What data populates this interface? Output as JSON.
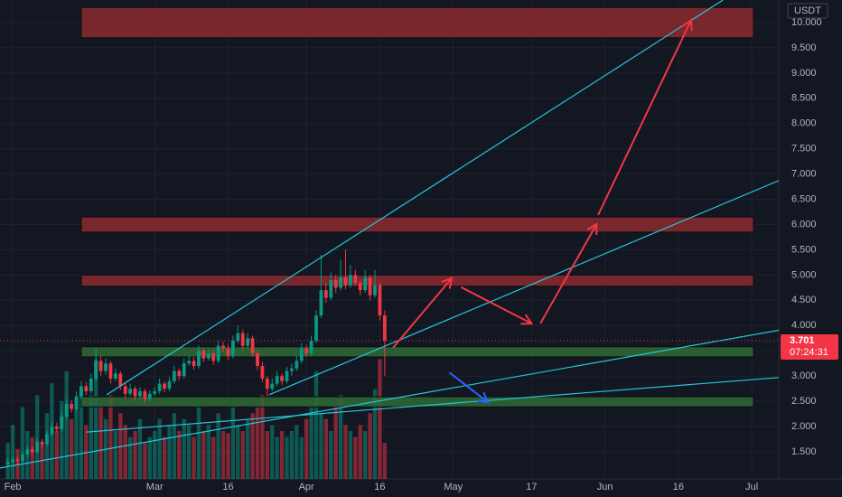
{
  "chart_data": {
    "type": "candlestick",
    "currency": "USDT",
    "last_price": 3.701,
    "countdown": "07:24:31",
    "colors": {
      "up": "#089981",
      "down": "#f23645"
    },
    "grid": true,
    "xlim": [
      -2.6,
      156.5
    ],
    "ylim": [
      0.963,
      10.447
    ],
    "volume_lim": [
      0,
      400
    ],
    "xticks": [
      {
        "value": 0,
        "label": "Feb"
      },
      {
        "value": 29,
        "label": "Mar"
      },
      {
        "value": 44,
        "label": "16"
      },
      {
        "value": 60,
        "label": "Apr"
      },
      {
        "value": 75,
        "label": "16"
      },
      {
        "value": 90,
        "label": "May"
      },
      {
        "value": 106,
        "label": "17"
      },
      {
        "value": 121,
        "label": "Jun"
      },
      {
        "value": 136,
        "label": "16"
      },
      {
        "value": 151,
        "label": "Jul"
      }
    ],
    "yticks": [
      {
        "value": 1.5,
        "label": "1.500"
      },
      {
        "value": 2,
        "label": "2.000"
      },
      {
        "value": 2.5,
        "label": "2.500"
      },
      {
        "value": 3,
        "label": "3.000"
      },
      {
        "value": 3.5,
        "label": "3.500"
      },
      {
        "value": 4,
        "label": "4.000"
      },
      {
        "value": 4.5,
        "label": "4.500"
      },
      {
        "value": 5,
        "label": "5.000"
      },
      {
        "value": 5.5,
        "label": "5.500"
      },
      {
        "value": 6,
        "label": "6.000"
      },
      {
        "value": 6.5,
        "label": "6.500"
      },
      {
        "value": 7,
        "label": "7.000"
      },
      {
        "value": 7.5,
        "label": "7.500"
      },
      {
        "value": 8,
        "label": "8.000"
      },
      {
        "value": 8.5,
        "label": "8.500"
      },
      {
        "value": 9,
        "label": "9.000"
      },
      {
        "value": 9.5,
        "label": "9.500"
      },
      {
        "value": 10,
        "label": "10.000"
      }
    ],
    "x": [
      -1,
      0,
      1,
      2,
      3,
      4,
      5,
      6,
      7,
      8,
      9,
      10,
      11,
      12,
      13,
      14,
      15,
      16,
      17,
      18,
      19,
      20,
      21,
      22,
      23,
      24,
      25,
      26,
      27,
      28,
      29,
      30,
      31,
      32,
      33,
      34,
      35,
      36,
      37,
      38,
      39,
      40,
      41,
      42,
      43,
      44,
      45,
      46,
      47,
      48,
      49,
      50,
      51,
      52,
      53,
      54,
      55,
      56,
      57,
      58,
      59,
      60,
      61,
      62,
      63,
      64,
      65,
      66,
      67,
      68,
      69,
      70,
      71,
      72,
      73,
      74,
      75,
      76
    ],
    "ohlc": [
      [
        1.25,
        1.38,
        1.2,
        1.3
      ],
      [
        1.3,
        1.42,
        1.26,
        1.35
      ],
      [
        1.35,
        1.4,
        1.25,
        1.32
      ],
      [
        1.32,
        1.52,
        1.28,
        1.45
      ],
      [
        1.45,
        1.62,
        1.4,
        1.55
      ],
      [
        1.55,
        1.6,
        1.44,
        1.5
      ],
      [
        1.5,
        1.78,
        1.46,
        1.7
      ],
      [
        1.7,
        1.75,
        1.58,
        1.65
      ],
      [
        1.65,
        1.92,
        1.6,
        1.85
      ],
      [
        1.85,
        2.1,
        1.8,
        2.0
      ],
      [
        2.0,
        2.08,
        1.88,
        1.95
      ],
      [
        1.95,
        2.3,
        1.9,
        2.2
      ],
      [
        2.2,
        2.55,
        2.15,
        2.45
      ],
      [
        2.45,
        2.52,
        2.28,
        2.35
      ],
      [
        2.35,
        2.7,
        2.3,
        2.6
      ],
      [
        2.6,
        2.9,
        2.55,
        2.8
      ],
      [
        2.8,
        2.88,
        2.62,
        2.7
      ],
      [
        2.7,
        3.05,
        2.65,
        2.95
      ],
      [
        2.95,
        3.55,
        2.9,
        3.3
      ],
      [
        3.3,
        3.4,
        3.0,
        3.1
      ],
      [
        3.1,
        3.35,
        3.02,
        3.25
      ],
      [
        3.25,
        3.3,
        2.85,
        2.95
      ],
      [
        2.95,
        3.15,
        2.9,
        3.05
      ],
      [
        3.05,
        3.1,
        2.72,
        2.8
      ],
      [
        2.8,
        2.88,
        2.55,
        2.65
      ],
      [
        2.65,
        2.85,
        2.6,
        2.75
      ],
      [
        2.75,
        2.8,
        2.52,
        2.6
      ],
      [
        2.6,
        2.78,
        2.55,
        2.7
      ],
      [
        2.7,
        2.75,
        2.48,
        2.55
      ],
      [
        2.55,
        2.72,
        2.5,
        2.65
      ],
      [
        2.65,
        2.78,
        2.6,
        2.7
      ],
      [
        2.7,
        2.95,
        2.65,
        2.85
      ],
      [
        2.85,
        2.9,
        2.68,
        2.75
      ],
      [
        2.75,
        2.98,
        2.7,
        2.9
      ],
      [
        2.9,
        3.2,
        2.85,
        3.1
      ],
      [
        3.1,
        3.15,
        2.92,
        3.0
      ],
      [
        3.0,
        3.35,
        2.95,
        3.25
      ],
      [
        3.25,
        3.4,
        3.2,
        3.3
      ],
      [
        3.3,
        3.38,
        3.12,
        3.2
      ],
      [
        3.2,
        3.6,
        3.15,
        3.5
      ],
      [
        3.5,
        3.55,
        3.28,
        3.35
      ],
      [
        3.35,
        3.52,
        3.3,
        3.45
      ],
      [
        3.45,
        3.5,
        3.22,
        3.3
      ],
      [
        3.3,
        3.7,
        3.25,
        3.6
      ],
      [
        3.6,
        3.68,
        3.48,
        3.55
      ],
      [
        3.55,
        3.62,
        3.32,
        3.4
      ],
      [
        3.4,
        3.8,
        3.35,
        3.7
      ],
      [
        3.7,
        4.0,
        3.65,
        3.85
      ],
      [
        3.85,
        3.92,
        3.52,
        3.6
      ],
      [
        3.6,
        3.85,
        3.55,
        3.75
      ],
      [
        3.75,
        3.8,
        3.38,
        3.45
      ],
      [
        3.45,
        3.5,
        3.12,
        3.2
      ],
      [
        3.2,
        3.28,
        2.88,
        2.95
      ],
      [
        2.95,
        3.0,
        2.6,
        2.75
      ],
      [
        2.75,
        2.95,
        2.7,
        2.85
      ],
      [
        2.85,
        3.1,
        2.8,
        3.0
      ],
      [
        3.0,
        3.05,
        2.82,
        2.9
      ],
      [
        2.9,
        3.18,
        2.85,
        3.1
      ],
      [
        3.1,
        3.25,
        3.0,
        3.15
      ],
      [
        3.15,
        3.4,
        3.1,
        3.3
      ],
      [
        3.3,
        3.65,
        3.25,
        3.55
      ],
      [
        3.55,
        3.62,
        3.38,
        3.45
      ],
      [
        3.45,
        3.8,
        3.4,
        3.7
      ],
      [
        3.7,
        4.3,
        3.65,
        4.2
      ],
      [
        4.2,
        5.4,
        4.15,
        4.7
      ],
      [
        4.7,
        4.85,
        4.45,
        4.55
      ],
      [
        4.55,
        5.05,
        4.5,
        4.9
      ],
      [
        4.9,
        5.0,
        4.65,
        4.75
      ],
      [
        4.75,
        5.3,
        4.7,
        4.95
      ],
      [
        4.95,
        5.5,
        4.72,
        4.8
      ],
      [
        4.8,
        5.2,
        4.75,
        5.0
      ],
      [
        5.0,
        5.1,
        4.78,
        4.85
      ],
      [
        4.85,
        4.92,
        4.6,
        4.7
      ],
      [
        4.7,
        5.1,
        4.65,
        4.95
      ],
      [
        4.95,
        5.0,
        4.5,
        4.6
      ],
      [
        4.6,
        5.1,
        4.55,
        4.8
      ],
      [
        4.8,
        4.85,
        4.1,
        4.2
      ],
      [
        4.2,
        4.3,
        3.0,
        3.7
      ]
    ],
    "volume": [
      30,
      45,
      25,
      60,
      40,
      35,
      70,
      30,
      55,
      80,
      40,
      65,
      90,
      50,
      60,
      75,
      45,
      70,
      100,
      60,
      50,
      70,
      40,
      55,
      45,
      35,
      40,
      50,
      30,
      35,
      40,
      50,
      35,
      45,
      55,
      40,
      50,
      45,
      35,
      60,
      40,
      45,
      35,
      55,
      40,
      38,
      60,
      45,
      40,
      50,
      55,
      60,
      70,
      40,
      45,
      35,
      40,
      35,
      40,
      45,
      35,
      50,
      60,
      90,
      55,
      50,
      40,
      60,
      70,
      45,
      40,
      35,
      45,
      40,
      55,
      75,
      100,
      30
    ],
    "zones": [
      {
        "range": [
          9.7,
          10.3
        ],
        "color": "#8b2a2e"
      },
      {
        "range": [
          5.85,
          6.15
        ],
        "color": "#8b2a2e"
      },
      {
        "range": [
          4.78,
          5.0
        ],
        "color": "#8b2a2e"
      },
      {
        "range": [
          3.38,
          3.58
        ],
        "color": "#2f6b35"
      },
      {
        "range": [
          2.39,
          2.59
        ],
        "color": "#2f6b35"
      }
    ],
    "trendlines": [
      {
        "x": [
          19.2,
          145.1
        ],
        "y": [
          2.63,
          10.447
        ],
        "color": "#26c6da"
      },
      {
        "x": [
          52.4,
          169.5
        ],
        "y": [
          2.63,
          7.4
        ],
        "color": "#26c6da"
      },
      {
        "x": [
          -2.6,
          169.5
        ],
        "y": [
          1.18,
          4.13
        ],
        "color": "#26c6da"
      },
      {
        "x": [
          15,
          169.5
        ],
        "y": [
          1.89,
          3.07
        ],
        "color": "#26c6da"
      }
    ],
    "arrows": [
      {
        "x": [
          77.7,
          89.7
        ],
        "y": [
          3.56,
          4.94
        ],
        "color": "#f23645"
      },
      {
        "x": [
          91.6,
          106.0
        ],
        "y": [
          4.76,
          4.04
        ],
        "color": "#f23645"
      },
      {
        "x": [
          107.8,
          119.3
        ],
        "y": [
          4.04,
          6.01
        ],
        "color": "#f23645"
      },
      {
        "x": [
          119.6,
          138.6
        ],
        "y": [
          6.19,
          10.05
        ],
        "color": "#f23645"
      },
      {
        "x": [
          89.2,
          97.1
        ],
        "y": [
          3.07,
          2.48
        ],
        "color": "#2962ff"
      }
    ]
  }
}
